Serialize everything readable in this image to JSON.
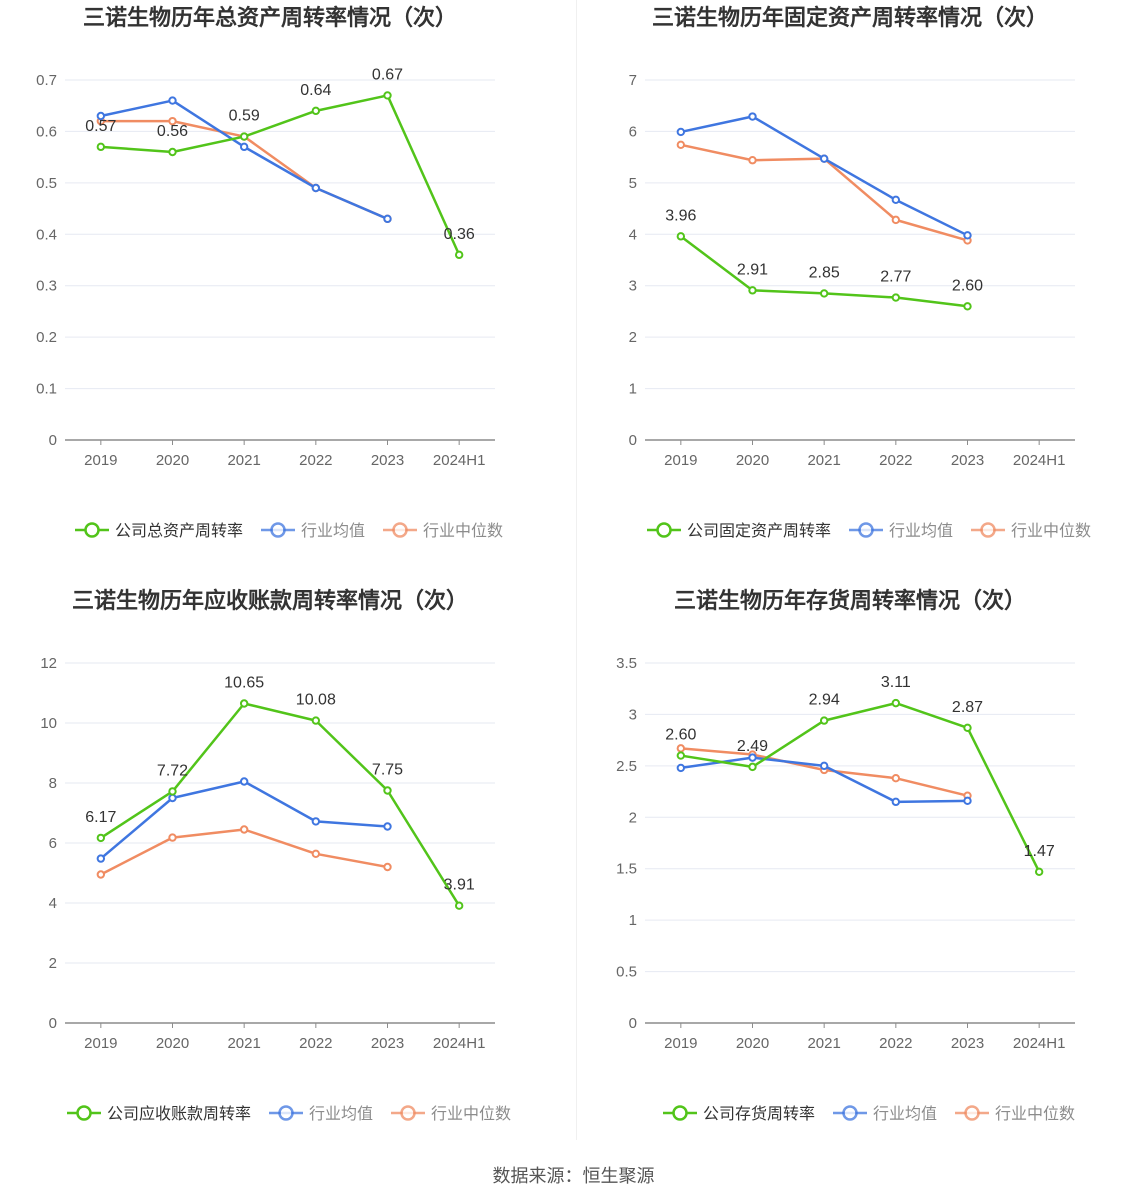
{
  "footer": {
    "source": "数据来源：恒生聚源"
  },
  "colors": {
    "company": "#52c41a",
    "avg": "#3f76e0",
    "median": "#f08c62",
    "grid": "#e6e9f2",
    "axis": "#8c8c8c"
  },
  "chart_data": [
    {
      "type": "line",
      "title": "三诺生物历年总资产周转率情况（次）",
      "categories": [
        "2019",
        "2020",
        "2021",
        "2022",
        "2023",
        "2024H1"
      ],
      "ylim": [
        0,
        0.7
      ],
      "yticks": [
        "0",
        "0.1",
        "0.2",
        "0.3",
        "0.4",
        "0.5",
        "0.6",
        "0.7"
      ],
      "series": [
        {
          "name": "公司总资产周转率",
          "key": "company",
          "values": [
            0.57,
            0.56,
            0.59,
            0.64,
            0.67,
            0.36
          ],
          "labels": [
            "0.57",
            "0.56",
            "0.59",
            "0.64",
            "0.67",
            "0.36"
          ]
        },
        {
          "name": "行业均值",
          "key": "avg",
          "values": [
            0.63,
            0.66,
            0.57,
            0.49,
            0.43,
            null
          ]
        },
        {
          "name": "行业中位数",
          "key": "median",
          "values": [
            0.62,
            0.62,
            0.59,
            0.49,
            0.43,
            null
          ]
        }
      ]
    },
    {
      "type": "line",
      "title": "三诺生物历年固定资产周转率情况（次）",
      "categories": [
        "2019",
        "2020",
        "2021",
        "2022",
        "2023",
        "2024H1"
      ],
      "ylim": [
        0,
        7
      ],
      "yticks": [
        "0",
        "1",
        "2",
        "3",
        "4",
        "5",
        "6",
        "7"
      ],
      "series": [
        {
          "name": "公司固定资产周转率",
          "key": "company",
          "values": [
            3.96,
            2.91,
            2.85,
            2.77,
            2.6,
            null
          ],
          "labels": [
            "3.96",
            "2.91",
            "2.85",
            "2.77",
            "2.60",
            ""
          ]
        },
        {
          "name": "行业均值",
          "key": "avg",
          "values": [
            5.99,
            6.29,
            5.47,
            4.67,
            3.98,
            null
          ]
        },
        {
          "name": "行业中位数",
          "key": "median",
          "values": [
            5.74,
            5.44,
            5.47,
            4.28,
            3.88,
            null
          ]
        }
      ]
    },
    {
      "type": "line",
      "title": "三诺生物历年应收账款周转率情况（次）",
      "categories": [
        "2019",
        "2020",
        "2021",
        "2022",
        "2023",
        "2024H1"
      ],
      "ylim": [
        0,
        12
      ],
      "yticks": [
        "0",
        "2",
        "4",
        "6",
        "8",
        "10",
        "12"
      ],
      "series": [
        {
          "name": "公司应收账款周转率",
          "key": "company",
          "values": [
            6.17,
            7.72,
            10.65,
            10.08,
            7.75,
            3.91
          ],
          "labels": [
            "6.17",
            "7.72",
            "10.65",
            "10.08",
            "7.75",
            "3.91"
          ]
        },
        {
          "name": "行业均值",
          "key": "avg",
          "values": [
            5.48,
            7.5,
            8.05,
            6.72,
            6.55,
            null
          ]
        },
        {
          "name": "行业中位数",
          "key": "median",
          "values": [
            4.95,
            6.18,
            6.45,
            5.64,
            5.2,
            null
          ]
        }
      ]
    },
    {
      "type": "line",
      "title": "三诺生物历年存货周转率情况（次）",
      "categories": [
        "2019",
        "2020",
        "2021",
        "2022",
        "2023",
        "2024H1"
      ],
      "ylim": [
        0,
        3.5
      ],
      "yticks": [
        "0",
        "0.5",
        "1",
        "1.5",
        "2",
        "2.5",
        "3",
        "3.5"
      ],
      "series": [
        {
          "name": "公司存货周转率",
          "key": "company",
          "values": [
            2.6,
            2.49,
            2.94,
            3.11,
            2.87,
            1.47
          ],
          "labels": [
            "2.60",
            "2.49",
            "2.94",
            "3.11",
            "2.87",
            "1.47"
          ]
        },
        {
          "name": "行业均值",
          "key": "avg",
          "values": [
            2.48,
            2.58,
            2.5,
            2.15,
            2.16,
            null
          ]
        },
        {
          "name": "行业中位数",
          "key": "median",
          "values": [
            2.67,
            2.61,
            2.46,
            2.38,
            2.21,
            null
          ]
        }
      ]
    }
  ]
}
